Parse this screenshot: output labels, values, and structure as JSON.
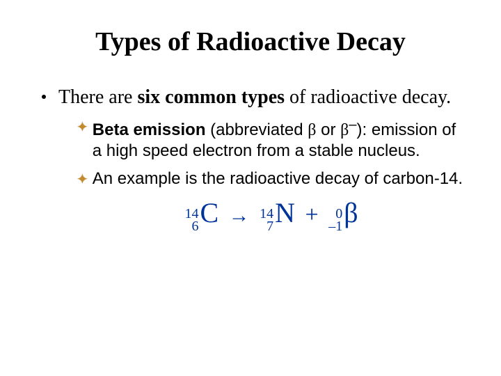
{
  "title": "Types of Radioactive Decay",
  "bullet1": {
    "prefix": "There are ",
    "bold": "six common types",
    "suffix": " of radioactive decay."
  },
  "sub1": {
    "bold": "Beta emission",
    "rest1": " (abbreviated ",
    "sym1": "β",
    "rest2": " or ",
    "sym2": "β",
    "sup": "–",
    "rest3": "): emission of a high speed electron from a stable nucleus."
  },
  "sub2": {
    "text": "An example is the radioactive decay of carbon-14."
  },
  "equation": {
    "c_mass": "14",
    "c_atomic": "6",
    "c_elem": "C",
    "arrow": "→",
    "n_mass": "14",
    "n_atomic": "7",
    "n_elem": "N",
    "plus": "+",
    "b_mass": "0",
    "b_atomic": "–1",
    "b_elem": "β"
  },
  "colors": {
    "text": "#000000",
    "background": "#ffffff",
    "star": "#c58a2a",
    "equation": "#003399"
  }
}
